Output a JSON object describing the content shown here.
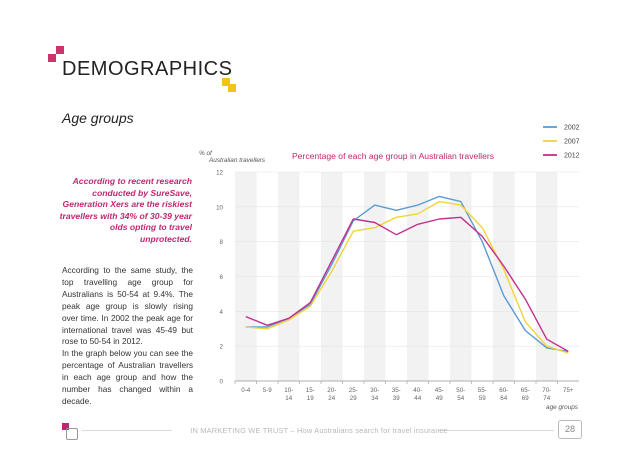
{
  "header": {
    "title": "DEMOGRAPHICS",
    "subtitle": "Age groups"
  },
  "quote": "According to recent research conducted by SureSave, Generation Xers are the riskiest travellers with 34% of 30-39 year olds opting to travel unprotected.",
  "body_paragraphs": [
    "According to the same study, the top travelling age group for Australians is 50-54 at 9.4%. The peak age group is slowly rising over time. In 2002 the peak age for international travel was 45-49 but rose to 50-54 in 2012.",
    "In the graph below you can see the percentage of Australian travellers in each age group and how the number has changed within a decade."
  ],
  "footer": {
    "text": "IN MARKETING WE TRUST – How Australians search for travel insurance",
    "page_number": "28"
  },
  "colors": {
    "accent_pink": "#d0336b",
    "accent_yellow": "#f2c418",
    "quote_text": "#c0266f"
  },
  "chart_data": {
    "type": "line",
    "title": "Percentage of each age group in Australian travellers",
    "ylabel": "% of Australian travellers",
    "xlabel": "age groups",
    "ylim": [
      0,
      12
    ],
    "yticks": [
      "0",
      "2",
      "4",
      "6",
      "8",
      "10",
      "12"
    ],
    "categories": [
      "0-4",
      "5-9",
      "10-14",
      "15-19",
      "20-24",
      "25-29",
      "30-34",
      "35-39",
      "40-44",
      "45-49",
      "50-54",
      "55-59",
      "60-64",
      "65-69",
      "70-74",
      "75+"
    ],
    "series": [
      {
        "name": "2002",
        "color": "#5b9bd5",
        "values": [
          3.1,
          3.1,
          3.6,
          4.4,
          6.7,
          9.2,
          10.1,
          9.8,
          10.1,
          10.6,
          10.3,
          8.0,
          4.9,
          2.9,
          1.9,
          1.7
        ]
      },
      {
        "name": "2007",
        "color": "#f2d33a",
        "values": [
          3.1,
          3.0,
          3.5,
          4.3,
          6.3,
          8.6,
          8.8,
          9.4,
          9.6,
          10.3,
          10.1,
          8.8,
          6.4,
          3.4,
          2.0,
          1.6
        ]
      },
      {
        "name": "2012",
        "color": "#c2308e",
        "values": [
          3.7,
          3.2,
          3.6,
          4.5,
          6.9,
          9.3,
          9.1,
          8.4,
          9.0,
          9.3,
          9.4,
          8.3,
          6.6,
          4.7,
          2.4,
          1.7
        ]
      }
    ]
  }
}
